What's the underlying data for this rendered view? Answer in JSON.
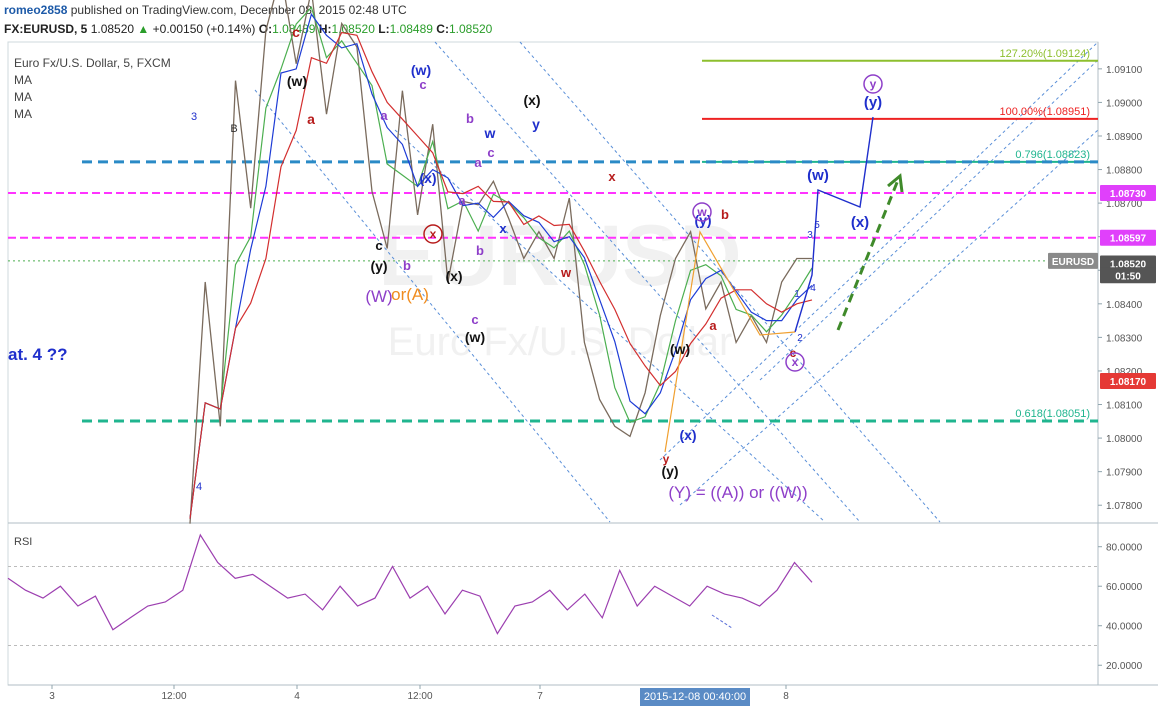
{
  "header": {
    "user": "romeo2858",
    "published_text": "published on TradingView.com, December 08, 2015 02:48 UTC",
    "symbol": "FX:EURUSD, 5",
    "last_price": "1.08520",
    "change": "+0.00150 (+0.14%)",
    "open_label": "O:",
    "open": "1.08489",
    "high_label": "H:",
    "high": "1.08520",
    "low_label": "L:",
    "low": "1.08489",
    "close_label": "C:",
    "close": "1.08520"
  },
  "legend": {
    "title": "Euro Fx/U.S. Dollar, 5, FXCM",
    "ma1": "MA",
    "ma2": "MA",
    "ma3": "MA"
  },
  "watermark": {
    "line1": "EURUSD",
    "line2": "Euro Fx/U.S. Dollar"
  },
  "rsi_label": "RSI",
  "colors": {
    "magenta": "#ff33ff",
    "red": "#ee2222",
    "green": "#8dbf2e",
    "teal": "#20b58f",
    "blue": "#2a8ac6",
    "rsi": "#9c3fb0",
    "wave_blue": "#1f2fcc",
    "wave_purple": "#8e3fc9",
    "wave_red": "#b71c1c",
    "price_label_red": "#e53935",
    "price_label_magenta": "#e040fb"
  },
  "chart_data": {
    "type": "line",
    "title": "Euro Fx/U.S. Dollar, 5, FXCM",
    "x_ticks": [
      "3",
      "12:00",
      "4",
      "12:00",
      "7",
      "2015-12-08 00:40:00",
      "8"
    ],
    "y_ticks": [
      "1.09100",
      "1.09000",
      "1.08900",
      "1.08800",
      "1.08700",
      "1.08600",
      "1.08500",
      "1.08400",
      "1.08300",
      "1.08200",
      "1.08100",
      "1.08000",
      "1.07900",
      "1.07800"
    ],
    "ylim": [
      1.0775,
      1.0918
    ],
    "price_labels": [
      {
        "text": "1.08730",
        "value": 1.0873,
        "color": "#e040fb"
      },
      {
        "text": "1.08597",
        "value": 1.08597,
        "color": "#e040fb"
      },
      {
        "text": "EURUSD",
        "value": 1.08528,
        "color": "#8a8a8a"
      },
      {
        "text": "1.08520",
        "value": 1.0852,
        "color": "#555555"
      },
      {
        "text": "01:50",
        "value": 1.08485,
        "color": "#555555"
      },
      {
        "text": "1.08170",
        "value": 1.0817,
        "color": "#e53935"
      }
    ],
    "fib_levels": [
      {
        "text": "127.20%(1.09124)",
        "value": 1.09124,
        "color": "#8dbf2e"
      },
      {
        "text": "100.00%(1.08951)",
        "value": 1.08951,
        "color": "#ee2222"
      },
      {
        "text": "0.796(1.08823)",
        "value": 1.08823,
        "color": "#20b58f"
      },
      {
        "text": "0.618(1.08051)",
        "value": 1.08051,
        "color": "#20b58f"
      }
    ],
    "series": [
      {
        "values": [
          1.0776,
          1.0845,
          1.0805,
          1.0905,
          1.087,
          1.092,
          1.094,
          1.091,
          1.0935,
          1.0895,
          1.0925,
          1.0915,
          1.0875,
          1.0855,
          1.0905,
          1.0865,
          1.0895,
          1.0845,
          1.0872,
          1.0868,
          1.0878,
          1.0864,
          1.0855,
          1.086,
          1.0855,
          1.087,
          1.083,
          1.081,
          1.0805,
          1.0799,
          1.0815,
          1.0835,
          1.0855,
          1.086,
          1.084,
          1.0845,
          1.083,
          1.0835,
          1.083,
          1.0845,
          1.0855,
          1.0852
        ]
      },
      {
        "name": "RSI",
        "values": [
          64,
          58,
          54,
          60,
          50,
          55,
          38,
          44,
          50,
          52,
          58,
          86,
          72,
          64,
          66,
          60,
          54,
          56,
          48,
          60,
          50,
          54,
          70,
          54,
          60,
          46,
          58,
          55,
          36,
          50,
          52,
          58,
          48,
          56,
          44,
          68,
          50,
          60,
          55,
          50,
          60,
          56,
          54,
          50,
          58,
          72,
          62
        ]
      }
    ],
    "rsi_ticks": [
      "80.0000",
      "60.0000",
      "40.0000",
      "20.0000"
    ],
    "rsi_ylim": [
      10,
      92
    ],
    "annotations": {
      "count_3": "3",
      "count_4": "4",
      "B": "B",
      "c1": "c",
      "w1": "(w)",
      "a1": "a",
      "y_black1": "(y)",
      "W_A": "(W)",
      "or_A": "or(A)",
      "c2": "c",
      "b_purple": "b",
      "a_purple1": "a",
      "w_blue1": "(w)",
      "c_purple2": "c",
      "x_blue1": "(x)",
      "x_circle": "x",
      "x_black1": "(x)",
      "a_purple2": "a",
      "b_purple2": "b",
      "c_purple3": "c",
      "w_black2": "(w)",
      "a_purple3": "a",
      "b_purple3": "b",
      "w_blue2": "w",
      "c_purple4": "c",
      "x_blue2": "x",
      "x_black2": "(x)",
      "y_blue": "y",
      "x_red": "x",
      "w_red": "w",
      "w_black3": "(w)",
      "x_black3": "(x)",
      "y_red": "y",
      "y_black2": "(y)",
      "Y_eq": "(Y) = ((A)) or ((W))",
      "w_circle": "w",
      "y_blue2": "(y)",
      "b_red": "b",
      "a_red": "a",
      "c_red": "c",
      "x_circle2": "x",
      "n1": "1",
      "n2": "2",
      "n3": "3",
      "n4": "4",
      "n5": "5",
      "w_blue3": "(w)",
      "x_blue3": "(x)",
      "y_circle": "y",
      "y_blue3": "(y)",
      "at4": "at. 4 ??"
    }
  }
}
